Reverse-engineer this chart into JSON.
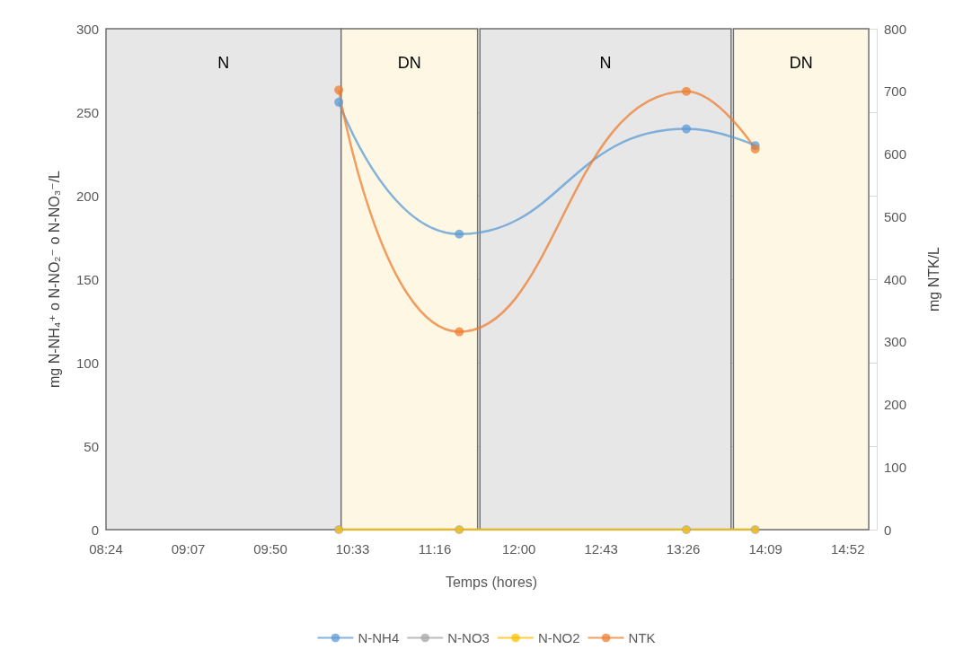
{
  "chart_data": {
    "type": "line",
    "xlabel": "Temps (hores)",
    "ylabel": "mg N-NH₄⁺ o N-NO₂⁻ o N-NO₃⁻/L",
    "y2label": "mg NTK/L",
    "x": [
      10.43,
      11.48,
      13.46,
      14.06
    ],
    "series": [
      {
        "name": "N-NH4",
        "color": "#5b9bd5",
        "values": [
          256,
          177,
          240,
          230
        ]
      },
      {
        "name": "N-NO3",
        "color": "#a5a5a5",
        "values": [
          0,
          0,
          0,
          0
        ]
      },
      {
        "name": "N-NO2",
        "color": "#ffc000",
        "values": [
          0,
          0,
          0,
          0
        ]
      },
      {
        "name": "NTK",
        "color": "#ed7d31",
        "axis": "y2",
        "values": [
          702,
          316,
          700,
          608
        ]
      }
    ],
    "xlim": [
      8.4,
      15.12
    ],
    "xticks": [
      {
        "value": 8.4,
        "label": "08:24"
      },
      {
        "value": 9.117,
        "label": "09:07"
      },
      {
        "value": 9.833,
        "label": "09:50"
      },
      {
        "value": 10.55,
        "label": "10:33"
      },
      {
        "value": 11.267,
        "label": "11:16"
      },
      {
        "value": 12.0,
        "label": "12:00"
      },
      {
        "value": 12.717,
        "label": "12:43"
      },
      {
        "value": 13.433,
        "label": "13:26"
      },
      {
        "value": 14.15,
        "label": "14:09"
      },
      {
        "value": 14.867,
        "label": "14:52"
      }
    ],
    "ylim": [
      0,
      300
    ],
    "yticks": [
      0,
      50,
      100,
      150,
      200,
      250,
      300
    ],
    "y2lim": [
      0,
      800
    ],
    "y2ticks": [
      0,
      100,
      200,
      300,
      400,
      500,
      600,
      700,
      800
    ],
    "bands": [
      {
        "axis": "x",
        "from": 8.4,
        "to": 10.45,
        "label": "N",
        "color": "#e7e7e7"
      },
      {
        "axis": "x",
        "from": 10.45,
        "to": 11.64,
        "label": "DN",
        "color": "#fdf7e3"
      },
      {
        "axis": "x",
        "from": 11.66,
        "to": 13.85,
        "label": "N",
        "color": "#e7e7e7"
      },
      {
        "axis": "x",
        "from": 13.87,
        "to": 15.05,
        "label": "DN",
        "color": "#fdf7e3"
      }
    ],
    "grid": true,
    "legend": "bottom",
    "marker": "circle",
    "line_style": "solid"
  }
}
